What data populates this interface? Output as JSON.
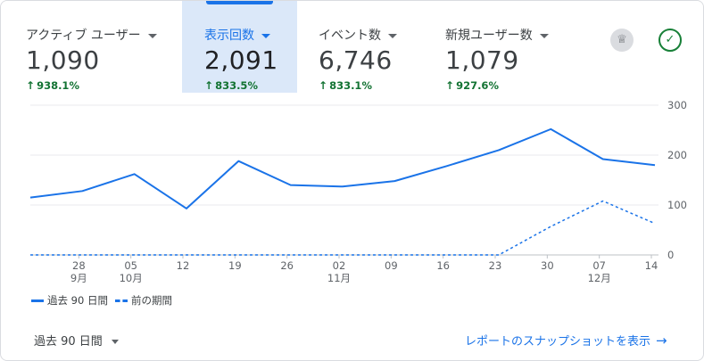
{
  "metrics": [
    {
      "label": "アクティブ ユーザー",
      "value": "1,090",
      "delta": "938.1%"
    },
    {
      "label": "表示回数",
      "value": "2,091",
      "delta": "833.5%"
    },
    {
      "label": "イベント数",
      "value": "6,746",
      "delta": "833.1%"
    },
    {
      "label": "新規ユーザー数",
      "value": "1,079",
      "delta": "927.6%"
    }
  ],
  "icons": {
    "badge": "medal-icon",
    "check": "check-circle-icon"
  },
  "colors": {
    "accent": "#1a73e8",
    "positive": "#137333",
    "active_bg": "#dbe8f9"
  },
  "footer": {
    "range": "過去 90 日間",
    "snapshot_link": "レポートのスナップショットを表示",
    "arrow": "→"
  },
  "chart_data": {
    "type": "line",
    "x_tick_labels": [
      {
        "day": "28",
        "month": "9月"
      },
      {
        "day": "05",
        "month": "10月"
      },
      {
        "day": "12",
        "month": ""
      },
      {
        "day": "19",
        "month": ""
      },
      {
        "day": "26",
        "month": ""
      },
      {
        "day": "02",
        "month": "11月"
      },
      {
        "day": "09",
        "month": ""
      },
      {
        "day": "16",
        "month": ""
      },
      {
        "day": "23",
        "month": ""
      },
      {
        "day": "30",
        "month": ""
      },
      {
        "day": "07",
        "month": "12月"
      },
      {
        "day": "14",
        "month": ""
      }
    ],
    "y_ticks": [
      "300",
      "200",
      "100",
      "0"
    ],
    "ylim": [
      0,
      300
    ],
    "grid": true,
    "legend_position": "bottom-left",
    "series": [
      {
        "name": "過去 90 日間",
        "style": "solid",
        "color": "#1a73e8",
        "values": [
          115,
          128,
          162,
          93,
          188,
          140,
          137,
          148,
          178,
          210,
          252,
          192,
          180
        ]
      },
      {
        "name": "前の期間",
        "style": "dashed",
        "color": "#1a73e8",
        "values": [
          0,
          0,
          0,
          0,
          0,
          0,
          0,
          0,
          0,
          0,
          57,
          108,
          63
        ]
      }
    ]
  }
}
